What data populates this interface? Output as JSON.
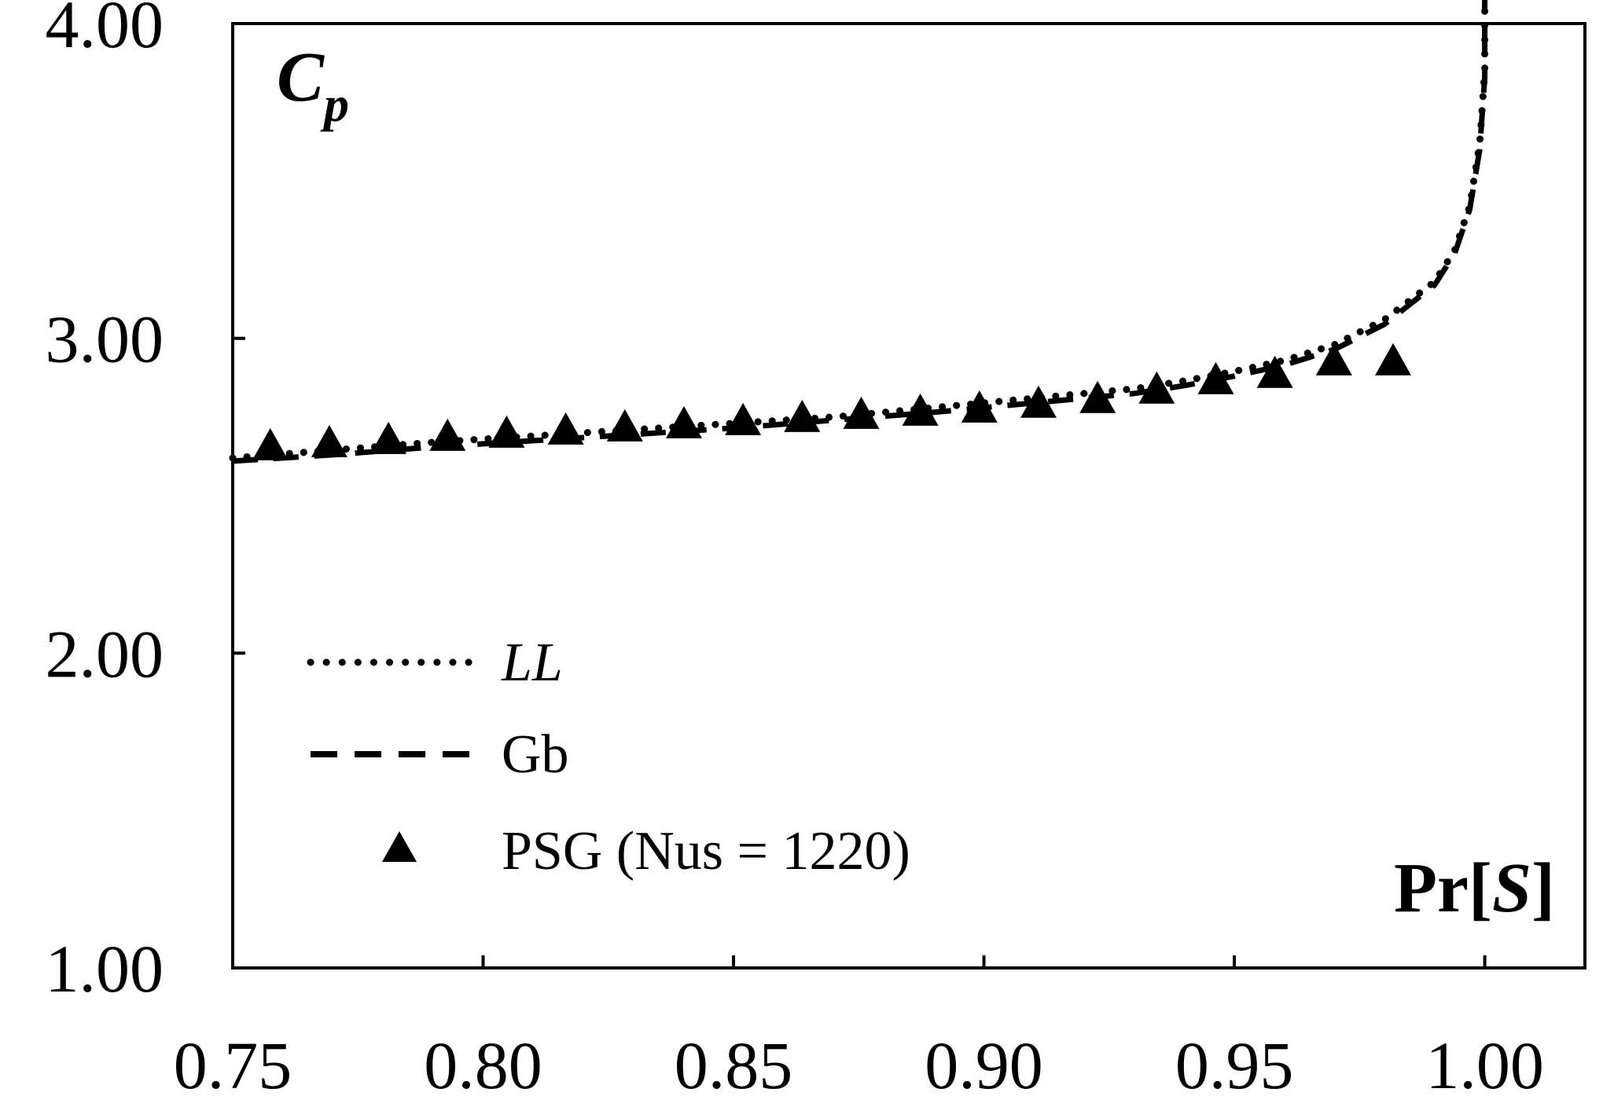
{
  "chart_data": {
    "type": "line",
    "title": "",
    "xlabel": {
      "main": "Pr[",
      "italic": "S",
      "close": "]"
    },
    "ylabel": {
      "main": "C",
      "sub": "p"
    },
    "xlim": [
      0.75,
      1.02
    ],
    "ylim": [
      1.0,
      4.0
    ],
    "xticks": [
      0.75,
      0.8,
      0.85,
      0.9,
      0.95,
      1.0
    ],
    "xtick_labels": [
      "0.75",
      "0.80",
      "0.85",
      "0.90",
      "0.95",
      "1.00"
    ],
    "yticks": [
      1.0,
      2.0,
      3.0,
      4.0
    ],
    "ytick_labels": [
      "1.00",
      "2.00",
      "3.00",
      "4.00"
    ],
    "grid": false,
    "legend_position": "lower-left",
    "series": [
      {
        "name": "LL",
        "italic": true,
        "style": "dotted",
        "x": [
          0.75,
          0.77,
          0.79,
          0.81,
          0.83,
          0.85,
          0.87,
          0.89,
          0.91,
          0.93,
          0.94,
          0.95,
          0.96,
          0.97,
          0.98,
          0.99,
          0.994,
          0.997,
          0.999,
          1.0,
          1.0
        ],
        "y": [
          2.62,
          2.645,
          2.67,
          2.69,
          2.71,
          2.73,
          2.75,
          2.78,
          2.81,
          2.84,
          2.865,
          2.895,
          2.93,
          2.98,
          3.06,
          3.18,
          3.28,
          3.42,
          3.62,
          3.85,
          4.1
        ]
      },
      {
        "name": "Gb",
        "italic": false,
        "style": "dashed",
        "x": [
          0.75,
          0.77,
          0.79,
          0.81,
          0.83,
          0.85,
          0.87,
          0.89,
          0.91,
          0.93,
          0.94,
          0.95,
          0.96,
          0.97,
          0.98,
          0.99,
          0.994,
          0.997,
          0.999,
          1.0,
          1.0
        ],
        "y": [
          2.61,
          2.63,
          2.655,
          2.675,
          2.695,
          2.715,
          2.74,
          2.765,
          2.795,
          2.825,
          2.85,
          2.88,
          2.915,
          2.965,
          3.045,
          3.17,
          3.27,
          3.41,
          3.6,
          3.83,
          4.08
        ]
      },
      {
        "name": "PSG (Nus = 1220)",
        "italic": false,
        "style": "triangle-markers",
        "x": [
          0.7575,
          0.7693,
          0.7811,
          0.7929,
          0.8047,
          0.8165,
          0.8283,
          0.8401,
          0.8519,
          0.8637,
          0.8755,
          0.8873,
          0.8991,
          0.9109,
          0.9227,
          0.9345,
          0.9463,
          0.9581,
          0.9699,
          0.9817
        ],
        "y": [
          2.65,
          2.66,
          2.67,
          2.68,
          2.69,
          2.7,
          2.71,
          2.72,
          2.73,
          2.74,
          2.75,
          2.76,
          2.77,
          2.785,
          2.8,
          2.83,
          2.86,
          2.88,
          2.92,
          2.92
        ]
      }
    ]
  }
}
